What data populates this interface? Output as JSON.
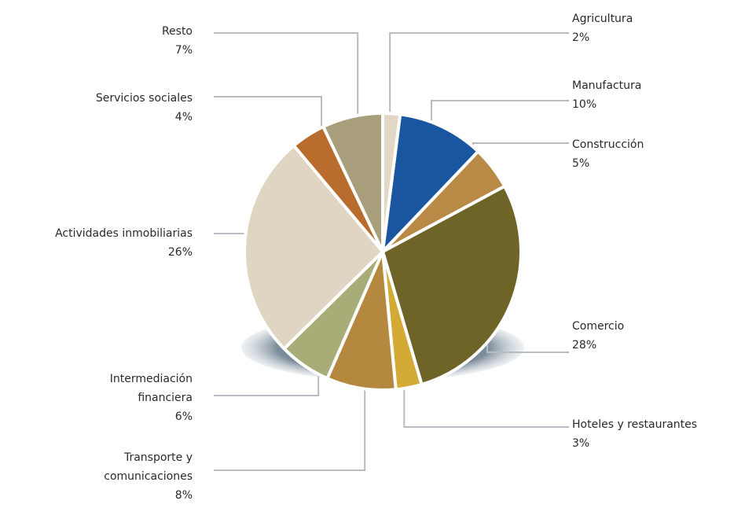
{
  "chart_data": {
    "type": "pie",
    "categories": [
      "Agricultura",
      "Manufactura",
      "Construcción",
      "Comercio",
      "Hoteles y restaurantes",
      "Transporte y comunicaciones",
      "Intermediación financiera",
      "Actividades inmobiliarias",
      "Servicios sociales",
      "Resto"
    ],
    "values": [
      2,
      10,
      5,
      28,
      3,
      8,
      6,
      26,
      4,
      7
    ],
    "value_labels": [
      "2%",
      "10%",
      "5%",
      "28%",
      "3%",
      "8%",
      "6%",
      "26%",
      "4%",
      "7%"
    ],
    "colors": [
      "#e3d8c5",
      "#1a55a0",
      "#b98a45",
      "#6e6428",
      "#d4aa36",
      "#b5883f",
      "#a8ad78",
      "#e0d5c2",
      "#b86c2e",
      "#a89e7c"
    ]
  }
}
